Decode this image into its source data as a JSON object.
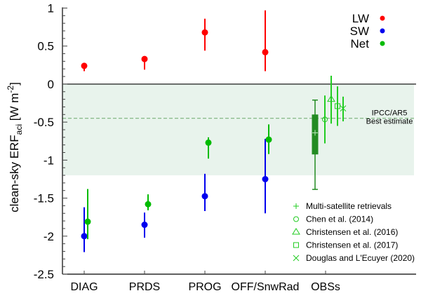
{
  "chart_data": {
    "type": "scatter",
    "ylabel": "clean-sky ERF",
    "ylabel_sub": "aci",
    "ylabel_units": " [W m",
    "ylabel_sup": "-2",
    "ylabel_close": "]",
    "ylim": [
      -2.5,
      1
    ],
    "yticks": [
      "1",
      "0.5",
      "0",
      "-0.5",
      "-1",
      "-1.5",
      "-2",
      "-2.5"
    ],
    "ytick_values": [
      1,
      0.5,
      0,
      -0.5,
      -1,
      -1.5,
      -2,
      -2.5
    ],
    "categories": [
      "DIAG",
      "PRDS",
      "PROG",
      "OFF/SnwRad",
      "OBSs"
    ],
    "colors": {
      "LW": "#ff0000",
      "SW": "#0000ee",
      "Net": "#00bb00",
      "obs": "#22cc22",
      "box": "#228b22",
      "shade": "#e8f3ec",
      "ipcc": "#6aa86a"
    },
    "shaded_range": [
      -1.2,
      0
    ],
    "ipcc": {
      "value": -0.45,
      "label1": "IPCC/AR5",
      "label2": "Best estimate"
    },
    "series": [
      {
        "name": "LW",
        "values": [
          0.24,
          0.33,
          0.68,
          0.42
        ],
        "lower": [
          0.17,
          0.19,
          0.44,
          0.17
        ],
        "upper": [
          0.27,
          0.36,
          0.86,
          0.97
        ]
      },
      {
        "name": "SW",
        "values": [
          -2.0,
          -1.85,
          -1.475,
          -1.25
        ],
        "lower": [
          -2.21,
          -2.02,
          -1.67,
          -1.7
        ],
        "upper": [
          -1.62,
          -1.69,
          -1.18,
          -0.72
        ]
      },
      {
        "name": "Net",
        "values": [
          -1.81,
          -1.58,
          -0.77,
          -0.73
        ],
        "lower": [
          -2.04,
          -1.66,
          -0.98,
          -0.92
        ],
        "upper": [
          -1.38,
          -1.45,
          -0.7,
          -0.53
        ]
      }
    ],
    "obs_box": {
      "whisker_low": -1.385,
      "q1": -0.925,
      "median": -0.64,
      "q3": -0.4,
      "whisker_high": -0.21
    },
    "obs_points": [
      {
        "name": "Multi-satellite retrievals",
        "marker": "plus",
        "value": -0.64
      },
      {
        "name": "Chen et al. (2014)",
        "marker": "circle",
        "value": -0.465,
        "lower": -0.78,
        "upper": -0.15
      },
      {
        "name": "Christensen et al. (2016)",
        "marker": "triangle",
        "value": -0.2,
        "lower": -0.52,
        "upper": 0.11
      },
      {
        "name": "Christensen et al. (2017)",
        "marker": "square",
        "value": -0.29,
        "lower": -0.55,
        "upper": -0.03
      },
      {
        "name": "Douglas and L'Ecuyer (2020)",
        "marker": "x",
        "value": -0.32,
        "lower": -0.49,
        "upper": -0.165
      }
    ],
    "legend": [
      "LW",
      "SW",
      "Net"
    ],
    "legend_placement": "top-right",
    "grid": false
  }
}
